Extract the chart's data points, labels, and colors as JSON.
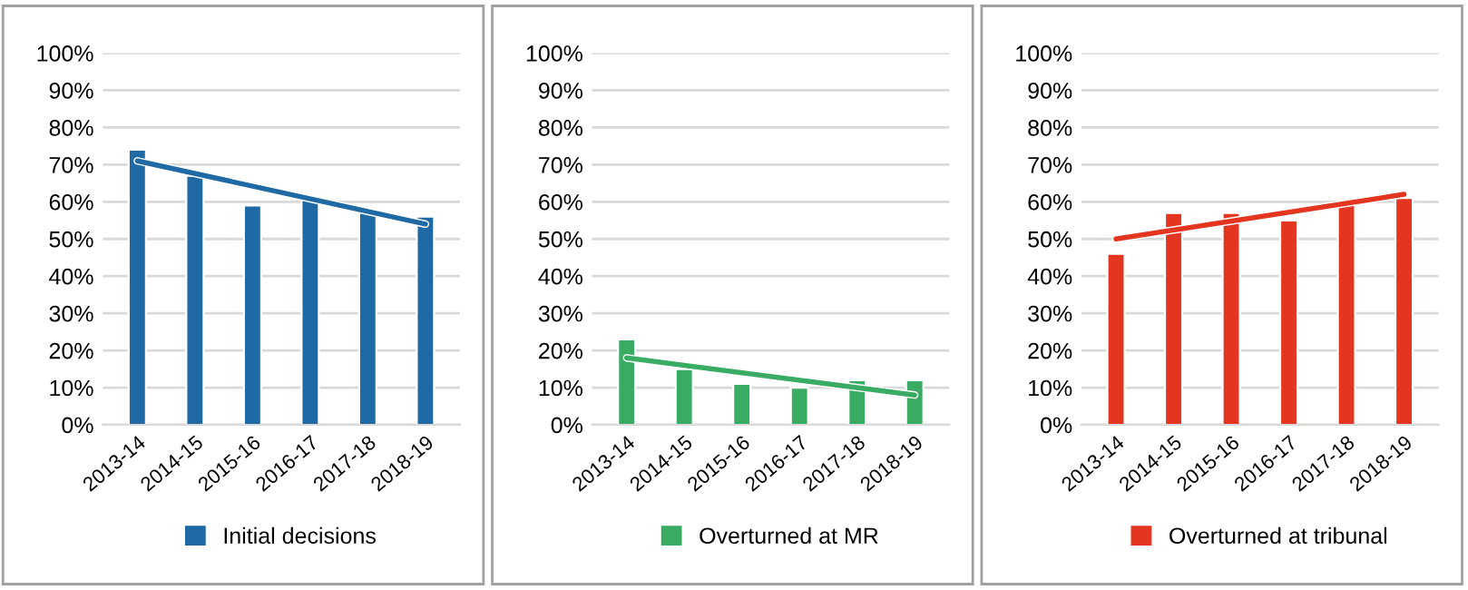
{
  "chart_data": [
    {
      "type": "bar",
      "categories": [
        "2013-14",
        "2014-15",
        "2015-16",
        "2016-17",
        "2017-18",
        "2018-19"
      ],
      "ylim": [
        0,
        100
      ],
      "yticks": [
        {
          "value": 0,
          "label": "0%"
        },
        {
          "value": 10,
          "label": "10%"
        },
        {
          "value": 20,
          "label": "20%"
        },
        {
          "value": 30,
          "label": "30%"
        },
        {
          "value": 40,
          "label": "40%"
        },
        {
          "value": 50,
          "label": "50%"
        },
        {
          "value": 60,
          "label": "60%"
        },
        {
          "value": 70,
          "label": "70%"
        },
        {
          "value": 80,
          "label": "80%"
        },
        {
          "value": 90,
          "label": "90%"
        },
        {
          "value": 100,
          "label": "100%"
        }
      ],
      "grid": "y",
      "legend": "bottom",
      "series": [
        {
          "name": "Initial decisions",
          "color": "#1f6aa5",
          "values": [
            74,
            67,
            59,
            61,
            58,
            56
          ]
        },
        {
          "type": "line",
          "color": "#1f6aa5",
          "x": [
            "2013-14",
            "2018-19"
          ],
          "values": [
            71,
            54
          ]
        }
      ]
    },
    {
      "type": "bar",
      "categories": [
        "2013-14",
        "2014-15",
        "2015-16",
        "2016-17",
        "2017-18",
        "2018-19"
      ],
      "ylim": [
        0,
        100
      ],
      "yticks": [
        {
          "value": 0,
          "label": "0%"
        },
        {
          "value": 10,
          "label": "10%"
        },
        {
          "value": 20,
          "label": "20%"
        },
        {
          "value": 30,
          "label": "30%"
        },
        {
          "value": 40,
          "label": "40%"
        },
        {
          "value": 50,
          "label": "50%"
        },
        {
          "value": 60,
          "label": "60%"
        },
        {
          "value": 70,
          "label": "70%"
        },
        {
          "value": 80,
          "label": "80%"
        },
        {
          "value": 90,
          "label": "90%"
        },
        {
          "value": 100,
          "label": "100%"
        }
      ],
      "grid": "y",
      "legend": "bottom",
      "series": [
        {
          "name": "Overturned at MR",
          "color": "#3aab63",
          "values": [
            23,
            15,
            11,
            10,
            12,
            12
          ]
        },
        {
          "type": "line",
          "color": "#3aab63",
          "x": [
            "2013-14",
            "2018-19"
          ],
          "values": [
            18,
            8
          ]
        }
      ]
    },
    {
      "type": "bar",
      "categories": [
        "2013-14",
        "2014-15",
        "2015-16",
        "2016-17",
        "2017-18",
        "2018-19"
      ],
      "ylim": [
        0,
        100
      ],
      "yticks": [
        {
          "value": 0,
          "label": "0%"
        },
        {
          "value": 10,
          "label": "10%"
        },
        {
          "value": 20,
          "label": "20%"
        },
        {
          "value": 30,
          "label": "30%"
        },
        {
          "value": 40,
          "label": "40%"
        },
        {
          "value": 50,
          "label": "50%"
        },
        {
          "value": 60,
          "label": "60%"
        },
        {
          "value": 70,
          "label": "70%"
        },
        {
          "value": 80,
          "label": "80%"
        },
        {
          "value": 90,
          "label": "90%"
        },
        {
          "value": 100,
          "label": "100%"
        }
      ],
      "grid": "y",
      "legend": "bottom",
      "series": [
        {
          "name": "Overturned at tribunal",
          "color": "#e43521",
          "values": [
            46,
            57,
            57,
            55,
            60,
            61
          ]
        },
        {
          "type": "line",
          "color": "#e43521",
          "x": [
            "2013-14",
            "2018-19"
          ],
          "values": [
            50,
            62
          ]
        }
      ]
    }
  ]
}
